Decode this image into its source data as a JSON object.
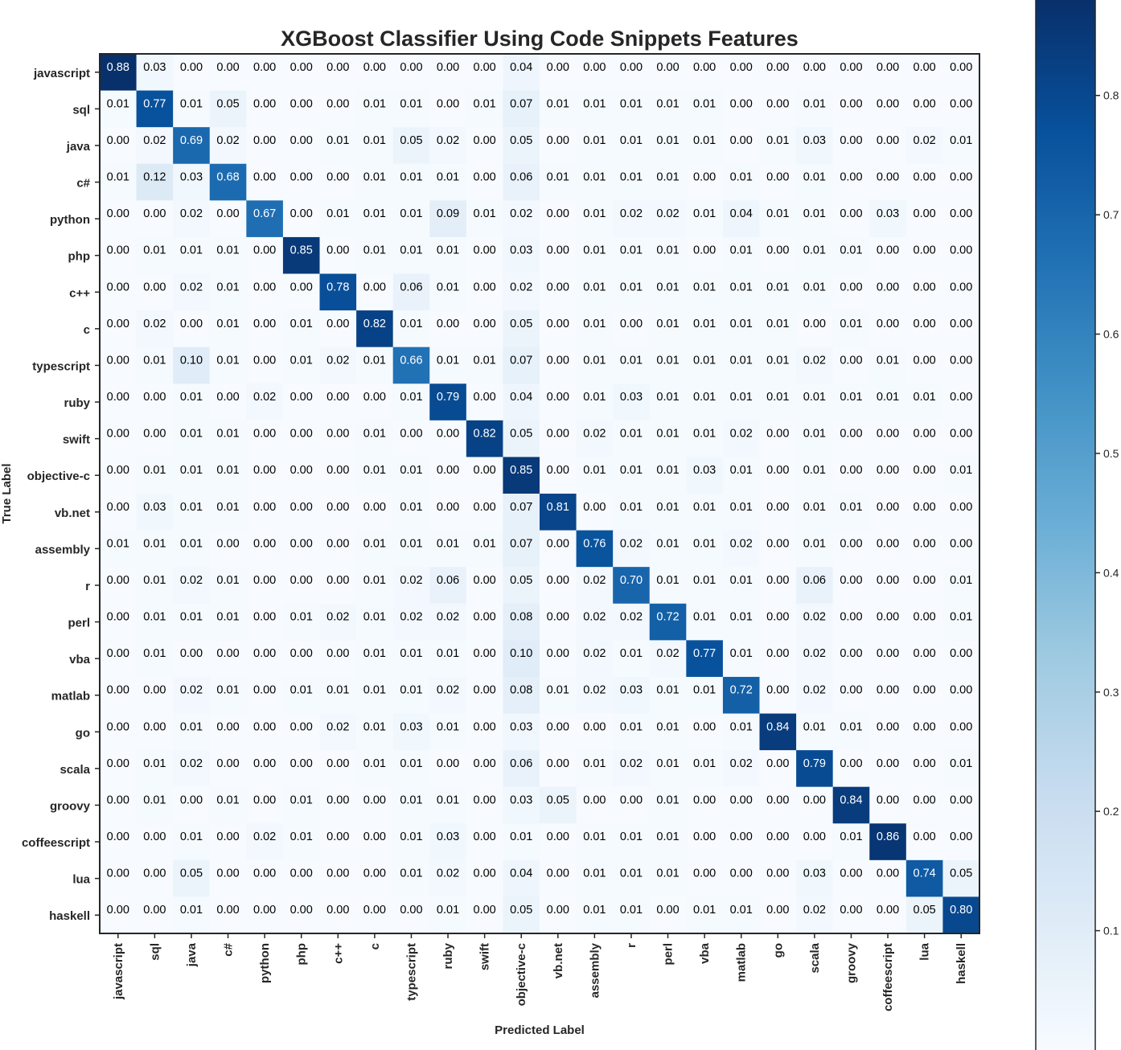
{
  "chart_data": {
    "type": "heatmap",
    "title": "XGBoost Classifier Using Code Snippets Features",
    "xlabel": "Predicted Label",
    "ylabel": "True Label",
    "labels": [
      "javascript",
      "sql",
      "java",
      "c#",
      "python",
      "php",
      "c++",
      "c",
      "typescript",
      "ruby",
      "swift",
      "objective-c",
      "vb.net",
      "assembly",
      "r",
      "perl",
      "vba",
      "matlab",
      "go",
      "scala",
      "groovy",
      "coffeescript",
      "lua",
      "haskell"
    ],
    "matrix": [
      [
        "0.88",
        "0.03",
        "0.00",
        "0.00",
        "0.00",
        "0.00",
        "0.00",
        "0.00",
        "0.00",
        "0.00",
        "0.00",
        "0.04",
        "0.00",
        "0.00",
        "0.00",
        "0.00",
        "0.00",
        "0.00",
        "0.00",
        "0.00",
        "0.00",
        "0.00",
        "0.00",
        "0.00"
      ],
      [
        "0.01",
        "0.77",
        "0.01",
        "0.05",
        "0.00",
        "0.00",
        "0.00",
        "0.01",
        "0.01",
        "0.00",
        "0.01",
        "0.07",
        "0.01",
        "0.01",
        "0.01",
        "0.01",
        "0.01",
        "0.00",
        "0.00",
        "0.01",
        "0.00",
        "0.00",
        "0.00",
        "0.00"
      ],
      [
        "0.00",
        "0.02",
        "0.69",
        "0.02",
        "0.00",
        "0.00",
        "0.01",
        "0.01",
        "0.05",
        "0.02",
        "0.00",
        "0.05",
        "0.00",
        "0.01",
        "0.01",
        "0.01",
        "0.01",
        "0.00",
        "0.01",
        "0.03",
        "0.00",
        "0.00",
        "0.02",
        "0.01"
      ],
      [
        "0.01",
        "0.12",
        "0.03",
        "0.68",
        "0.00",
        "0.00",
        "0.00",
        "0.01",
        "0.01",
        "0.01",
        "0.00",
        "0.06",
        "0.01",
        "0.01",
        "0.01",
        "0.01",
        "0.00",
        "0.01",
        "0.00",
        "0.01",
        "0.00",
        "0.00",
        "0.00",
        "0.00"
      ],
      [
        "0.00",
        "0.00",
        "0.02",
        "0.00",
        "0.67",
        "0.00",
        "0.01",
        "0.01",
        "0.01",
        "0.09",
        "0.01",
        "0.02",
        "0.00",
        "0.01",
        "0.02",
        "0.02",
        "0.01",
        "0.04",
        "0.01",
        "0.01",
        "0.00",
        "0.03",
        "0.00",
        "0.00"
      ],
      [
        "0.00",
        "0.01",
        "0.01",
        "0.01",
        "0.00",
        "0.85",
        "0.00",
        "0.01",
        "0.01",
        "0.01",
        "0.00",
        "0.03",
        "0.00",
        "0.01",
        "0.01",
        "0.01",
        "0.00",
        "0.01",
        "0.00",
        "0.01",
        "0.01",
        "0.00",
        "0.00",
        "0.00"
      ],
      [
        "0.00",
        "0.00",
        "0.02",
        "0.01",
        "0.00",
        "0.00",
        "0.78",
        "0.00",
        "0.06",
        "0.01",
        "0.00",
        "0.02",
        "0.00",
        "0.01",
        "0.01",
        "0.01",
        "0.01",
        "0.01",
        "0.01",
        "0.01",
        "0.00",
        "0.00",
        "0.00",
        "0.00"
      ],
      [
        "0.00",
        "0.02",
        "0.00",
        "0.01",
        "0.00",
        "0.01",
        "0.00",
        "0.82",
        "0.01",
        "0.00",
        "0.00",
        "0.05",
        "0.00",
        "0.01",
        "0.00",
        "0.01",
        "0.01",
        "0.01",
        "0.01",
        "0.00",
        "0.01",
        "0.00",
        "0.00",
        "0.00"
      ],
      [
        "0.00",
        "0.01",
        "0.10",
        "0.01",
        "0.00",
        "0.01",
        "0.02",
        "0.01",
        "0.66",
        "0.01",
        "0.01",
        "0.07",
        "0.00",
        "0.01",
        "0.01",
        "0.01",
        "0.01",
        "0.01",
        "0.01",
        "0.02",
        "0.00",
        "0.01",
        "0.00",
        "0.00"
      ],
      [
        "0.00",
        "0.00",
        "0.01",
        "0.00",
        "0.02",
        "0.00",
        "0.00",
        "0.00",
        "0.01",
        "0.79",
        "0.00",
        "0.04",
        "0.00",
        "0.01",
        "0.03",
        "0.01",
        "0.01",
        "0.01",
        "0.01",
        "0.01",
        "0.01",
        "0.01",
        "0.01",
        "0.00"
      ],
      [
        "0.00",
        "0.00",
        "0.01",
        "0.01",
        "0.00",
        "0.00",
        "0.00",
        "0.01",
        "0.00",
        "0.00",
        "0.82",
        "0.05",
        "0.00",
        "0.02",
        "0.01",
        "0.01",
        "0.01",
        "0.02",
        "0.00",
        "0.01",
        "0.00",
        "0.00",
        "0.00",
        "0.00"
      ],
      [
        "0.00",
        "0.01",
        "0.01",
        "0.01",
        "0.00",
        "0.00",
        "0.00",
        "0.01",
        "0.01",
        "0.00",
        "0.00",
        "0.85",
        "0.00",
        "0.01",
        "0.01",
        "0.01",
        "0.03",
        "0.01",
        "0.00",
        "0.01",
        "0.00",
        "0.00",
        "0.00",
        "0.01"
      ],
      [
        "0.00",
        "0.03",
        "0.01",
        "0.01",
        "0.00",
        "0.00",
        "0.00",
        "0.00",
        "0.01",
        "0.00",
        "0.00",
        "0.07",
        "0.81",
        "0.00",
        "0.01",
        "0.01",
        "0.01",
        "0.01",
        "0.00",
        "0.01",
        "0.01",
        "0.00",
        "0.00",
        "0.00"
      ],
      [
        "0.01",
        "0.01",
        "0.01",
        "0.00",
        "0.00",
        "0.00",
        "0.00",
        "0.01",
        "0.01",
        "0.01",
        "0.01",
        "0.07",
        "0.00",
        "0.76",
        "0.02",
        "0.01",
        "0.01",
        "0.02",
        "0.00",
        "0.01",
        "0.00",
        "0.00",
        "0.00",
        "0.00"
      ],
      [
        "0.00",
        "0.01",
        "0.02",
        "0.01",
        "0.00",
        "0.00",
        "0.00",
        "0.01",
        "0.02",
        "0.06",
        "0.00",
        "0.05",
        "0.00",
        "0.02",
        "0.70",
        "0.01",
        "0.01",
        "0.01",
        "0.00",
        "0.06",
        "0.00",
        "0.00",
        "0.00",
        "0.01"
      ],
      [
        "0.00",
        "0.01",
        "0.01",
        "0.01",
        "0.00",
        "0.01",
        "0.02",
        "0.01",
        "0.02",
        "0.02",
        "0.00",
        "0.08",
        "0.00",
        "0.02",
        "0.02",
        "0.72",
        "0.01",
        "0.01",
        "0.00",
        "0.02",
        "0.00",
        "0.00",
        "0.00",
        "0.01"
      ],
      [
        "0.00",
        "0.01",
        "0.00",
        "0.00",
        "0.00",
        "0.00",
        "0.00",
        "0.01",
        "0.01",
        "0.01",
        "0.00",
        "0.10",
        "0.00",
        "0.02",
        "0.01",
        "0.02",
        "0.77",
        "0.01",
        "0.00",
        "0.02",
        "0.00",
        "0.00",
        "0.00",
        "0.00"
      ],
      [
        "0.00",
        "0.00",
        "0.02",
        "0.01",
        "0.00",
        "0.01",
        "0.01",
        "0.01",
        "0.01",
        "0.02",
        "0.00",
        "0.08",
        "0.01",
        "0.02",
        "0.03",
        "0.01",
        "0.01",
        "0.72",
        "0.00",
        "0.02",
        "0.00",
        "0.00",
        "0.00",
        "0.00"
      ],
      [
        "0.00",
        "0.00",
        "0.01",
        "0.00",
        "0.00",
        "0.00",
        "0.02",
        "0.01",
        "0.03",
        "0.01",
        "0.00",
        "0.03",
        "0.00",
        "0.00",
        "0.01",
        "0.01",
        "0.00",
        "0.01",
        "0.84",
        "0.01",
        "0.01",
        "0.00",
        "0.00",
        "0.00"
      ],
      [
        "0.00",
        "0.01",
        "0.02",
        "0.00",
        "0.00",
        "0.00",
        "0.00",
        "0.01",
        "0.01",
        "0.00",
        "0.00",
        "0.06",
        "0.00",
        "0.01",
        "0.02",
        "0.01",
        "0.01",
        "0.02",
        "0.00",
        "0.79",
        "0.00",
        "0.00",
        "0.00",
        "0.01"
      ],
      [
        "0.00",
        "0.01",
        "0.00",
        "0.01",
        "0.00",
        "0.01",
        "0.00",
        "0.00",
        "0.01",
        "0.01",
        "0.00",
        "0.03",
        "0.05",
        "0.00",
        "0.00",
        "0.01",
        "0.00",
        "0.00",
        "0.00",
        "0.00",
        "0.84",
        "0.00",
        "0.00",
        "0.00"
      ],
      [
        "0.00",
        "0.00",
        "0.01",
        "0.00",
        "0.02",
        "0.01",
        "0.00",
        "0.00",
        "0.01",
        "0.03",
        "0.00",
        "0.01",
        "0.00",
        "0.01",
        "0.01",
        "0.01",
        "0.00",
        "0.00",
        "0.00",
        "0.00",
        "0.01",
        "0.86",
        "0.00",
        "0.00"
      ],
      [
        "0.00",
        "0.00",
        "0.05",
        "0.00",
        "0.00",
        "0.00",
        "0.00",
        "0.00",
        "0.01",
        "0.02",
        "0.00",
        "0.04",
        "0.00",
        "0.01",
        "0.01",
        "0.01",
        "0.00",
        "0.00",
        "0.00",
        "0.03",
        "0.00",
        "0.00",
        "0.74",
        "0.05"
      ],
      [
        "0.00",
        "0.00",
        "0.01",
        "0.00",
        "0.00",
        "0.00",
        "0.00",
        "0.00",
        "0.00",
        "0.01",
        "0.00",
        "0.05",
        "0.00",
        "0.01",
        "0.01",
        "0.00",
        "0.01",
        "0.01",
        "0.00",
        "0.02",
        "0.00",
        "0.00",
        "0.05",
        "0.80"
      ]
    ],
    "colormap": "Blues",
    "color_range": [
      0.0,
      0.88
    ],
    "colorbar_ticks": [
      "0.1",
      "0.2",
      "0.3",
      "0.4",
      "0.5",
      "0.6",
      "0.7",
      "0.8"
    ],
    "colorbar_values": [
      0.1,
      0.2,
      0.3,
      0.4,
      0.5,
      0.6,
      0.7,
      0.8
    ],
    "grid": false,
    "legend": "colorbar-right"
  }
}
